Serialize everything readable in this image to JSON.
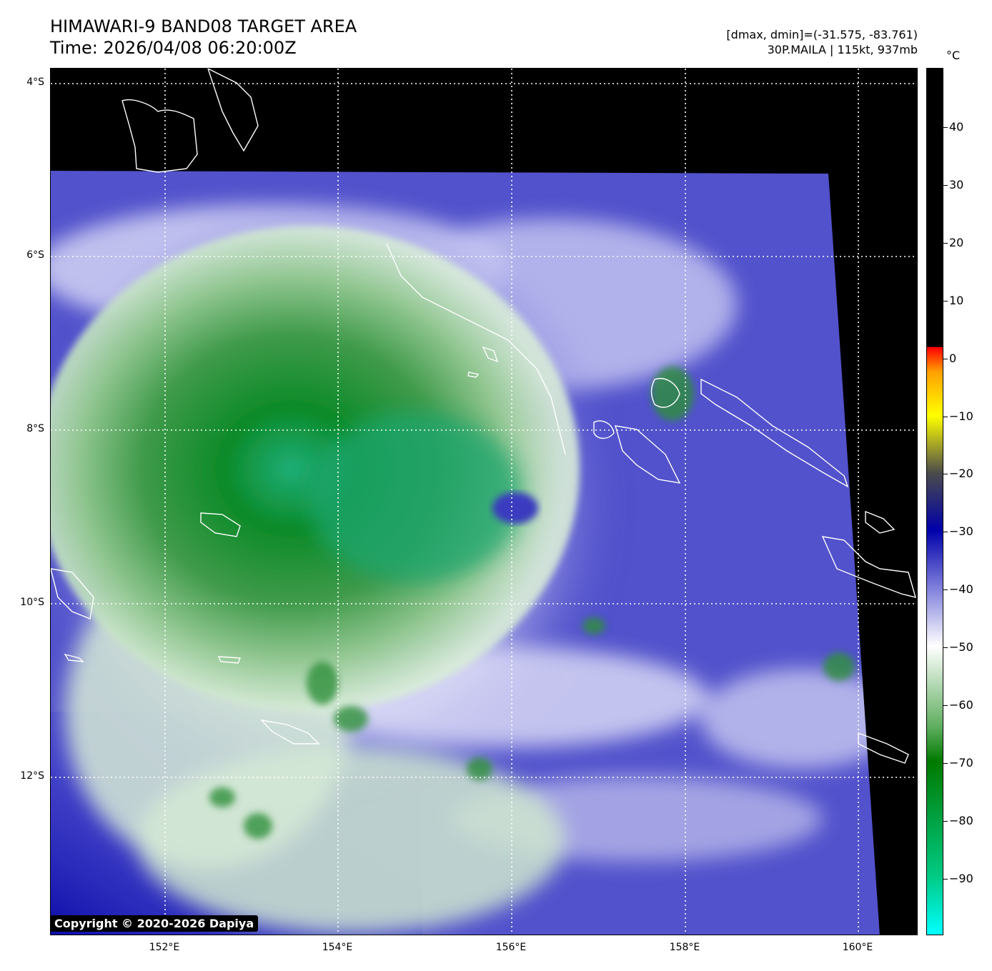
{
  "header": {
    "title_line1": "HIMAWARI-9 BAND08 TARGET AREA",
    "title_line2": "Time: 2026/04/08 06:20:00Z",
    "stats_line": "[dmax, dmin]=(-31.575, -83.761)",
    "storm_line": "30P.MAILA | 115kt, 937mb"
  },
  "axes": {
    "lat_labels": [
      "4°S",
      "6°S",
      "8°S",
      "10°S",
      "12°S"
    ],
    "lon_labels": [
      "152°E",
      "154°E",
      "156°E",
      "158°E",
      "160°E"
    ]
  },
  "colorbar": {
    "unit": "°C",
    "ticks": [
      "40",
      "30",
      "20",
      "10",
      "0",
      "−10",
      "−20",
      "−30",
      "−40",
      "−50",
      "−60",
      "−70",
      "−80",
      "−90"
    ],
    "colors": {
      "warm": "#000000",
      "zero": "#ff0000",
      "minus10": "#ffff00",
      "minus20": "#4b4b4b",
      "minus30": "#0000aa",
      "minus45": "#ffffff",
      "minus70": "#007a00",
      "minus100": "#00ffff"
    }
  },
  "copyright": "Copyright © 2020-2026 Dapiya"
}
